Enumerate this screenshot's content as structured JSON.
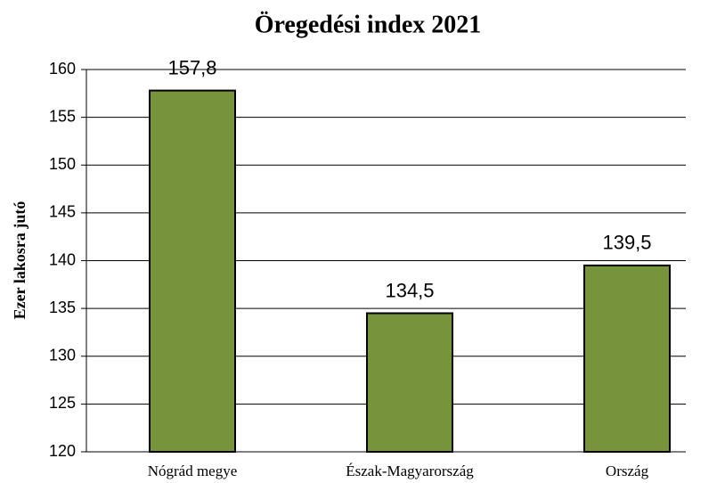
{
  "chart_data": {
    "type": "bar",
    "title": "Öregedési index 2021",
    "ylabel": "Ezer lakosra jutó",
    "categories": [
      "Nógrád megye",
      "Észak-Magyarország",
      "Ország"
    ],
    "values": [
      157.8,
      134.5,
      139.5
    ],
    "value_labels": [
      "157,8",
      "134,5",
      "139,5"
    ],
    "color": "#77933c",
    "ylim": [
      120,
      160
    ],
    "yticks": [
      120,
      125,
      130,
      135,
      140,
      145,
      150,
      155,
      160
    ],
    "grid": true
  }
}
